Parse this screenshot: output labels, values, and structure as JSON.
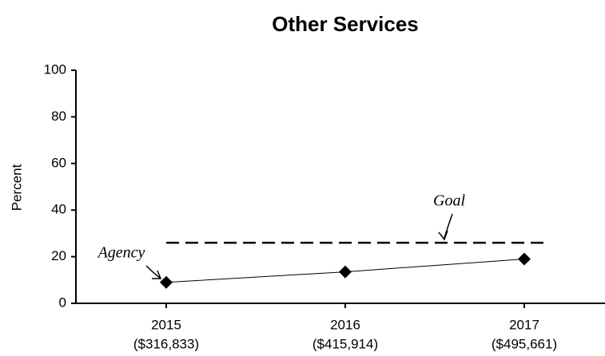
{
  "chart_data": {
    "type": "line",
    "title": "Other Services",
    "ylabel": "Percent",
    "categories": [
      "2015",
      "2016",
      "2017"
    ],
    "category_amounts": [
      "($316,833)",
      "($415,914)",
      "($495,661)"
    ],
    "series": [
      {
        "name": "Agency",
        "color": "#000000",
        "values": [
          9,
          13.5,
          19
        ]
      }
    ],
    "goal": {
      "name": "Goal",
      "value": 26
    },
    "ylim": [
      0,
      100
    ],
    "yticks": [
      0,
      20,
      40,
      60,
      80,
      100
    ],
    "grid": false
  }
}
